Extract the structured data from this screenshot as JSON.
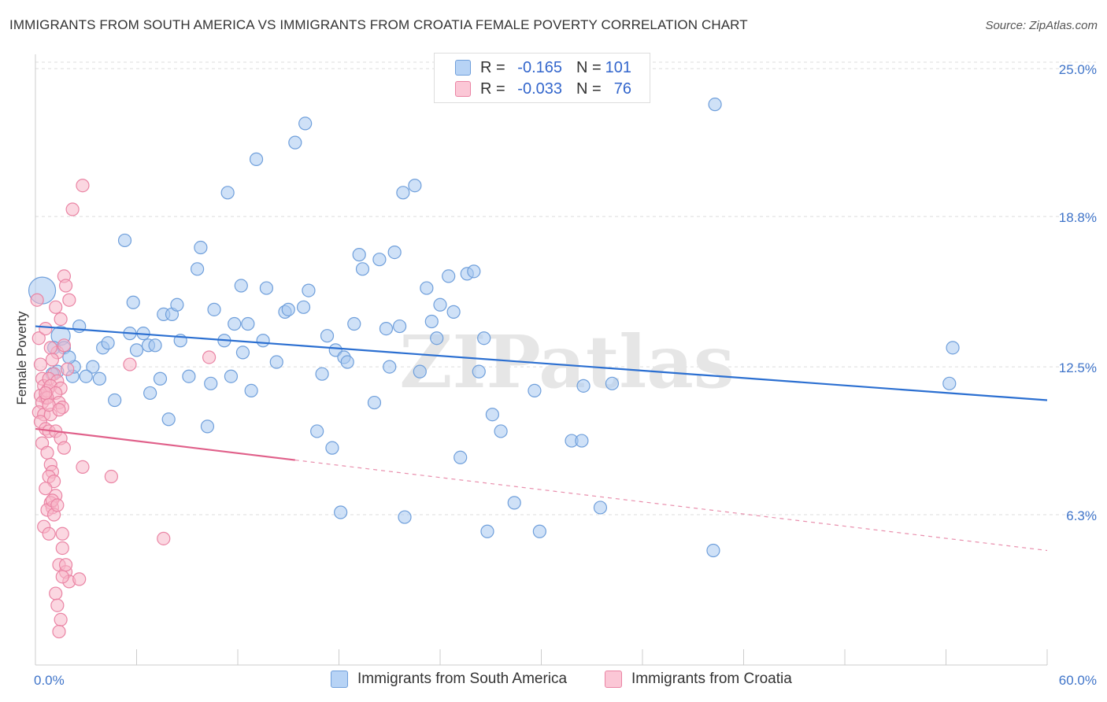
{
  "title": "IMMIGRANTS FROM SOUTH AMERICA VS IMMIGRANTS FROM CROATIA FEMALE POVERTY CORRELATION CHART",
  "source": "Source: ZipAtlas.com",
  "watermark": "ZIPatlas",
  "legend_top": {
    "rows": [
      {
        "r_label": "R =",
        "r_value": "-0.165",
        "n_label": "N =",
        "n_value": "101"
      },
      {
        "r_label": "R =",
        "r_value": "-0.033",
        "n_label": "N =",
        "n_value": "76"
      }
    ]
  },
  "colors": {
    "blue_fill": "#a8c8f0",
    "blue_stroke": "#6f9fdb",
    "blue_line": "#2b6fd1",
    "pink_fill": "#f7b6c8",
    "pink_stroke": "#ea84a4",
    "pink_line": "#e0608a",
    "axis_text": "#3f74c9"
  },
  "chart_data": {
    "type": "scatter",
    "title": "IMMIGRANTS FROM SOUTH AMERICA VS IMMIGRANTS FROM CROATIA FEMALE POVERTY CORRELATION CHART",
    "xlabel": "",
    "ylabel": "Female Poverty",
    "xlim": [
      0,
      60
    ],
    "ylim": [
      0,
      25.6
    ],
    "x_tick_labels": [
      "0.0%",
      "60.0%"
    ],
    "y_ticks": [
      6.3,
      12.5,
      18.8,
      25.0
    ],
    "y_tick_labels": [
      "6.3%",
      "12.5%",
      "18.8%",
      "25.0%"
    ],
    "grid": "horizontal dashed",
    "legend": "bottom-center",
    "series": [
      {
        "name": "Immigrants from South America",
        "R": -0.165,
        "N": 101,
        "trend": {
          "x": [
            0,
            60
          ],
          "y": [
            14.2,
            11.1
          ],
          "solid_to": 60
        },
        "points": [
          [
            0.4,
            15.7
          ],
          [
            1.5,
            13.8
          ],
          [
            1.1,
            13.3
          ],
          [
            1.7,
            13.3
          ],
          [
            1.3,
            12.3
          ],
          [
            2.2,
            12.1
          ],
          [
            1.0,
            12.2
          ],
          [
            2.3,
            12.5
          ],
          [
            3.4,
            12.5
          ],
          [
            3.8,
            12.0
          ],
          [
            2.6,
            14.2
          ],
          [
            4.7,
            11.1
          ],
          [
            4.0,
            13.3
          ],
          [
            4.3,
            13.5
          ],
          [
            5.3,
            17.8
          ],
          [
            5.6,
            13.9
          ],
          [
            5.8,
            15.2
          ],
          [
            6.0,
            13.2
          ],
          [
            6.4,
            13.9
          ],
          [
            6.7,
            13.4
          ],
          [
            6.8,
            11.4
          ],
          [
            7.1,
            13.4
          ],
          [
            7.4,
            12.0
          ],
          [
            7.6,
            14.7
          ],
          [
            7.9,
            10.3
          ],
          [
            8.1,
            14.7
          ],
          [
            8.4,
            15.1
          ],
          [
            8.6,
            13.6
          ],
          [
            9.1,
            12.1
          ],
          [
            9.6,
            16.6
          ],
          [
            9.8,
            17.5
          ],
          [
            10.2,
            10.0
          ],
          [
            10.4,
            11.8
          ],
          [
            10.6,
            14.9
          ],
          [
            11.2,
            13.6
          ],
          [
            11.4,
            19.8
          ],
          [
            11.6,
            12.1
          ],
          [
            11.8,
            14.3
          ],
          [
            12.3,
            13.1
          ],
          [
            12.2,
            15.9
          ],
          [
            12.6,
            14.3
          ],
          [
            13.1,
            21.2
          ],
          [
            12.8,
            11.5
          ],
          [
            13.5,
            13.6
          ],
          [
            13.7,
            15.8
          ],
          [
            14.3,
            12.7
          ],
          [
            14.8,
            14.8
          ],
          [
            15.0,
            14.9
          ],
          [
            15.4,
            21.9
          ],
          [
            15.9,
            15.0
          ],
          [
            16.0,
            22.7
          ],
          [
            16.2,
            15.7
          ],
          [
            16.7,
            9.8
          ],
          [
            17.0,
            12.2
          ],
          [
            17.3,
            13.8
          ],
          [
            17.8,
            13.2
          ],
          [
            17.6,
            9.1
          ],
          [
            18.3,
            12.9
          ],
          [
            18.1,
            6.4
          ],
          [
            18.5,
            12.7
          ],
          [
            18.9,
            14.3
          ],
          [
            19.2,
            17.2
          ],
          [
            19.4,
            16.6
          ],
          [
            20.1,
            11.0
          ],
          [
            20.4,
            17.0
          ],
          [
            20.8,
            14.1
          ],
          [
            21.0,
            12.5
          ],
          [
            21.3,
            17.3
          ],
          [
            21.6,
            14.2
          ],
          [
            21.9,
            6.2
          ],
          [
            21.8,
            19.8
          ],
          [
            22.5,
            20.1
          ],
          [
            22.8,
            12.3
          ],
          [
            23.2,
            15.8
          ],
          [
            23.5,
            14.4
          ],
          [
            23.8,
            13.7
          ],
          [
            24.0,
            15.1
          ],
          [
            24.5,
            16.3
          ],
          [
            24.8,
            14.8
          ],
          [
            25.2,
            8.7
          ],
          [
            25.6,
            16.4
          ],
          [
            26.0,
            16.5
          ],
          [
            26.3,
            12.3
          ],
          [
            26.6,
            13.7
          ],
          [
            26.8,
            5.6
          ],
          [
            27.1,
            10.5
          ],
          [
            27.6,
            9.8
          ],
          [
            28.4,
            6.8
          ],
          [
            29.6,
            11.5
          ],
          [
            29.9,
            5.6
          ],
          [
            31.8,
            9.4
          ],
          [
            32.4,
            9.4
          ],
          [
            32.5,
            11.7
          ],
          [
            33.5,
            6.6
          ],
          [
            34.2,
            11.8
          ],
          [
            40.2,
            4.8
          ],
          [
            40.3,
            23.5
          ],
          [
            54.4,
            13.3
          ],
          [
            54.2,
            11.8
          ],
          [
            2.0,
            12.9
          ],
          [
            3.0,
            12.1
          ]
        ]
      },
      {
        "name": "Immigrants from Croatia",
        "R": -0.033,
        "N": 76,
        "trend": {
          "x": [
            0,
            60
          ],
          "y": [
            9.9,
            4.8
          ],
          "solid_to": 15.4
        },
        "points": [
          [
            0.1,
            15.3
          ],
          [
            0.2,
            13.7
          ],
          [
            0.3,
            12.6
          ],
          [
            0.4,
            12.0
          ],
          [
            0.5,
            11.7
          ],
          [
            0.3,
            11.3
          ],
          [
            0.6,
            11.2
          ],
          [
            0.4,
            11.0
          ],
          [
            0.7,
            11.5
          ],
          [
            0.2,
            10.6
          ],
          [
            0.5,
            10.5
          ],
          [
            0.3,
            10.2
          ],
          [
            0.6,
            9.9
          ],
          [
            0.8,
            9.8
          ],
          [
            0.4,
            9.3
          ],
          [
            0.7,
            8.9
          ],
          [
            0.9,
            8.4
          ],
          [
            1.0,
            8.1
          ],
          [
            0.8,
            7.9
          ],
          [
            1.1,
            7.7
          ],
          [
            0.6,
            7.4
          ],
          [
            1.2,
            7.1
          ],
          [
            0.9,
            6.8
          ],
          [
            1.0,
            6.6
          ],
          [
            0.7,
            6.5
          ],
          [
            1.1,
            6.3
          ],
          [
            0.5,
            5.8
          ],
          [
            0.8,
            5.5
          ],
          [
            1.6,
            5.5
          ],
          [
            1.4,
            4.2
          ],
          [
            1.8,
            3.9
          ],
          [
            2.0,
            3.5
          ],
          [
            1.6,
            3.7
          ],
          [
            1.2,
            3.0
          ],
          [
            1.3,
            2.5
          ],
          [
            1.5,
            1.9
          ],
          [
            1.4,
            1.4
          ],
          [
            1.7,
            16.3
          ],
          [
            1.8,
            15.9
          ],
          [
            2.2,
            19.1
          ],
          [
            2.8,
            20.1
          ],
          [
            1.5,
            14.5
          ],
          [
            1.3,
            13.1
          ],
          [
            0.9,
            13.3
          ],
          [
            0.6,
            14.1
          ],
          [
            1.7,
            13.4
          ],
          [
            2.0,
            15.3
          ],
          [
            1.0,
            12.8
          ],
          [
            1.9,
            12.4
          ],
          [
            1.1,
            12.2
          ],
          [
            0.8,
            12.0
          ],
          [
            1.3,
            11.9
          ],
          [
            0.9,
            11.7
          ],
          [
            1.5,
            11.6
          ],
          [
            1.2,
            11.4
          ],
          [
            0.7,
            11.2
          ],
          [
            1.4,
            11.0
          ],
          [
            1.6,
            10.8
          ],
          [
            0.9,
            10.5
          ],
          [
            1.2,
            9.8
          ],
          [
            1.5,
            9.5
          ],
          [
            1.7,
            9.1
          ],
          [
            2.8,
            8.3
          ],
          [
            4.5,
            7.9
          ],
          [
            5.6,
            12.6
          ],
          [
            7.6,
            5.3
          ],
          [
            10.3,
            12.9
          ],
          [
            1.0,
            6.9
          ],
          [
            1.3,
            6.7
          ],
          [
            2.6,
            3.6
          ],
          [
            1.8,
            4.2
          ],
          [
            1.6,
            4.9
          ],
          [
            0.6,
            11.4
          ],
          [
            0.8,
            10.9
          ],
          [
            1.4,
            10.7
          ],
          [
            1.2,
            15.0
          ]
        ]
      }
    ]
  },
  "legend_bottom": {
    "items": [
      "Immigrants from South America",
      "Immigrants from Croatia"
    ]
  }
}
